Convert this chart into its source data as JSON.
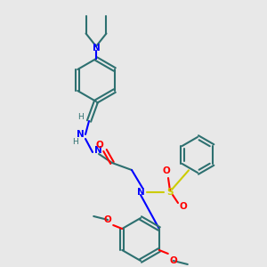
{
  "background_color": "#e8e8e8",
  "bond_color": "#2d7070",
  "bond_width": 1.5,
  "n_color": "#0000ff",
  "o_color": "#ff0000",
  "s_color": "#cccc00",
  "h_color": "#2d7070",
  "figsize": [
    3.0,
    3.0
  ],
  "dpi": 100,
  "xlim": [
    0,
    300
  ],
  "ylim": [
    0,
    300
  ]
}
